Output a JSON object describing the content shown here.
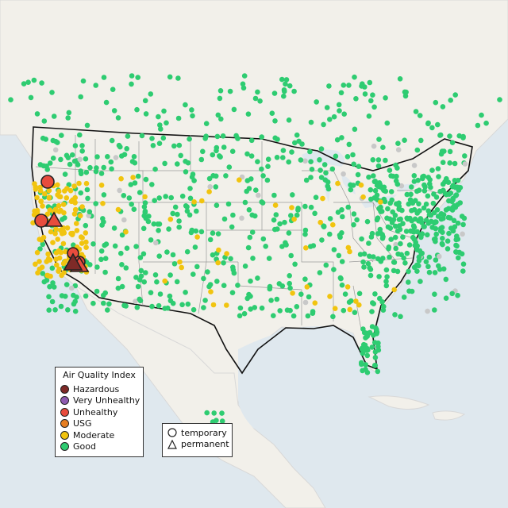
{
  "legend": {
    "title": "Air Quality Index",
    "categories": [
      {
        "label": "Hazardous",
        "color": "#7e2a27"
      },
      {
        "label": "Very Unhealthy",
        "color": "#8e5bb0"
      },
      {
        "label": "Unhealthy",
        "color": "#e84c3d"
      },
      {
        "label": "USG",
        "color": "#e67e22"
      },
      {
        "label": "Moderate",
        "color": "#f1c40f"
      },
      {
        "label": "Good",
        "color": "#2ecc71"
      }
    ],
    "types": [
      {
        "label": "temporary",
        "shape": "circle"
      },
      {
        "label": "permanent",
        "shape": "triangle"
      }
    ]
  },
  "colors": {
    "ocean": "#dfe8ee",
    "land": "#f3f1ec",
    "nodata": "#c8c8c8"
  }
}
